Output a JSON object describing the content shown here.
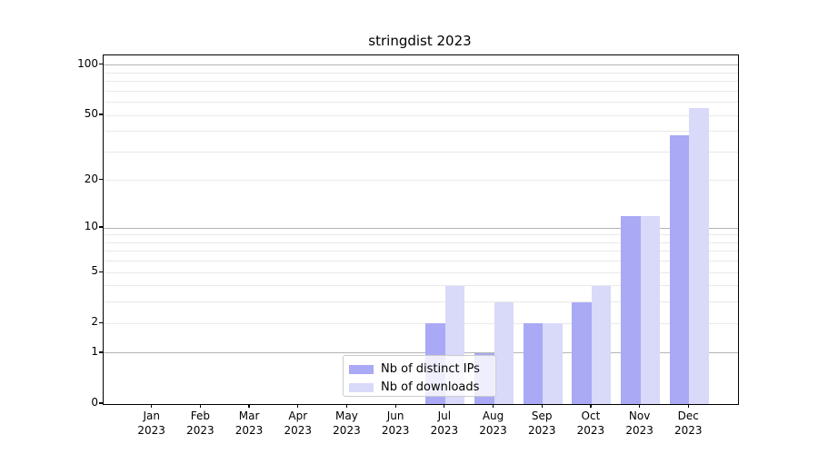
{
  "chart_data": {
    "type": "bar",
    "title": "stringdist 2023",
    "categories": [
      "Jan",
      "Feb",
      "Mar",
      "Apr",
      "May",
      "Jun",
      "Jul",
      "Aug",
      "Sep",
      "Oct",
      "Nov",
      "Dec"
    ],
    "x_year_label": "2023",
    "series": [
      {
        "name": "Nb of distinct IPs",
        "color": "#a9a9f5",
        "values": [
          0,
          0,
          0,
          0,
          0,
          0,
          2,
          1,
          2,
          3,
          12,
          38
        ]
      },
      {
        "name": "Nb of downloads",
        "color": "#d9d9fa",
        "values": [
          0,
          0,
          0,
          0,
          0,
          0,
          4,
          3,
          2,
          4,
          12,
          55
        ]
      }
    ],
    "yscale": "log1p",
    "ylim": [
      0,
      114
    ],
    "y_tick_values": [
      0,
      1,
      2,
      5,
      10,
      20,
      50,
      100
    ],
    "y_tick_labels": [
      "0",
      "1",
      "2",
      "5",
      "10",
      "20",
      "50",
      "100"
    ],
    "grid": {
      "decade_lines": [
        1,
        10,
        100
      ],
      "minor_lines": [
        2,
        3,
        4,
        5,
        6,
        7,
        8,
        9,
        20,
        30,
        40,
        50,
        60,
        70,
        80,
        90
      ]
    },
    "legend": {
      "position": "lower center"
    },
    "xlabel": "",
    "ylabel": ""
  },
  "colors": {
    "background": "#ffffff",
    "axis": "#000000",
    "grid_decade": "#b4b4b4",
    "grid_minor": "#e9e9e9",
    "legend_border": "#cccccc"
  }
}
